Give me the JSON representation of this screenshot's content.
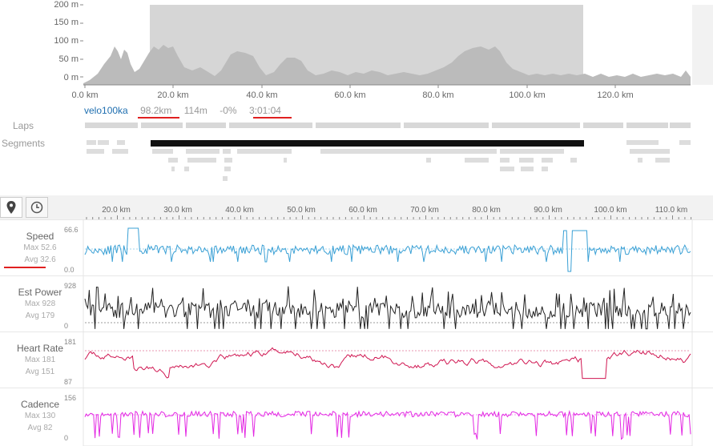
{
  "elevation": {
    "y_ticks": [
      "200 m",
      "150 m",
      "100 m",
      "50 m",
      "0 m"
    ],
    "x_ticks": [
      "0.0 km",
      "20.0 km",
      "40.0 km",
      "60.0 km",
      "80.0 km",
      "100.0 km",
      "120.0 km"
    ]
  },
  "summary": {
    "name": "velo100ka",
    "distance": "98.2km",
    "elevation": "114m",
    "grade": "-0%",
    "time": "3:01:04"
  },
  "labels": {
    "laps": "Laps",
    "segments": "Segments"
  },
  "tabs": {
    "map_icon": "map-pin-icon",
    "time_icon": "clock-icon"
  },
  "stream_axis": {
    "x_ticks": [
      "20.0 km",
      "30.0 km",
      "40.0 km",
      "50.0 km",
      "60.0 km",
      "70.0 km",
      "80.0 km",
      "90.0 km",
      "100.0 km",
      "110.0 km"
    ]
  },
  "streams": [
    {
      "name": "Speed",
      "max": "Max 52.6",
      "avg": "Avg 32.6",
      "top": "66.6",
      "bottom": "0.0",
      "color": "#3aa0d5"
    },
    {
      "name": "Est Power",
      "max": "Max 928",
      "avg": "Avg 179",
      "top": "928",
      "bottom": "0",
      "color": "#222222"
    },
    {
      "name": "Heart Rate",
      "max": "Max 181",
      "avg": "Avg 151",
      "top": "181",
      "bottom": "87",
      "color": "#d01651"
    },
    {
      "name": "Cadence",
      "max": "Max 130",
      "avg": "Avg 82",
      "top": "156",
      "bottom": "0",
      "color": "#e328e3"
    }
  ],
  "colors": {
    "underline": "#e02020",
    "link": "#1f6fb0",
    "highlight": "#111111"
  }
}
